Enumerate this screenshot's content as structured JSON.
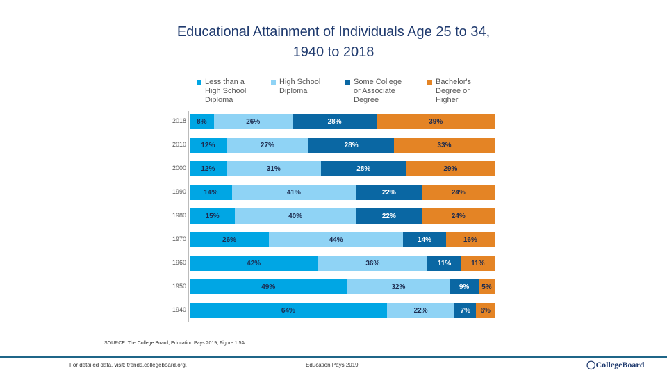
{
  "title_line1": "Educational Attainment of Individuals Age 25 to 34,",
  "title_line2": "1940 to 2018",
  "source": "SOURCE: The College Board, Education Pays 2019, Figure 1.5A",
  "footer": {
    "left": "For detailed data, visit: trends.collegeboard.org.",
    "middle": "Education Pays 2019",
    "logo": "CollegeBoard"
  },
  "chart_data": {
    "type": "bar",
    "orientation": "horizontal",
    "stacked": true,
    "categories": [
      "2018",
      "2010",
      "2000",
      "1990",
      "1980",
      "1970",
      "1960",
      "1950",
      "1940"
    ],
    "series": [
      {
        "name": "Less than a\nHigh School\nDiploma",
        "color": "#00a6e4",
        "label_color": "#1d2b4f",
        "values": [
          8,
          12,
          12,
          14,
          15,
          26,
          42,
          49,
          64
        ]
      },
      {
        "name": "High School\nDiploma",
        "color": "#8fd3f5",
        "label_color": "#1d2b4f",
        "values": [
          26,
          27,
          31,
          41,
          40,
          44,
          36,
          32,
          22
        ]
      },
      {
        "name": "Some College\nor Associate\nDegree",
        "color": "#0a67a3",
        "label_color": "#ffffff",
        "values": [
          28,
          28,
          28,
          22,
          22,
          14,
          11,
          9,
          7
        ]
      },
      {
        "name": "Bachelor's\nDegree or\nHigher",
        "color": "#e48425",
        "label_color": "#1d2b4f",
        "values": [
          39,
          33,
          29,
          24,
          24,
          16,
          11,
          5,
          6
        ]
      }
    ],
    "value_format": "{v}%",
    "legend": "top",
    "grid": false
  }
}
